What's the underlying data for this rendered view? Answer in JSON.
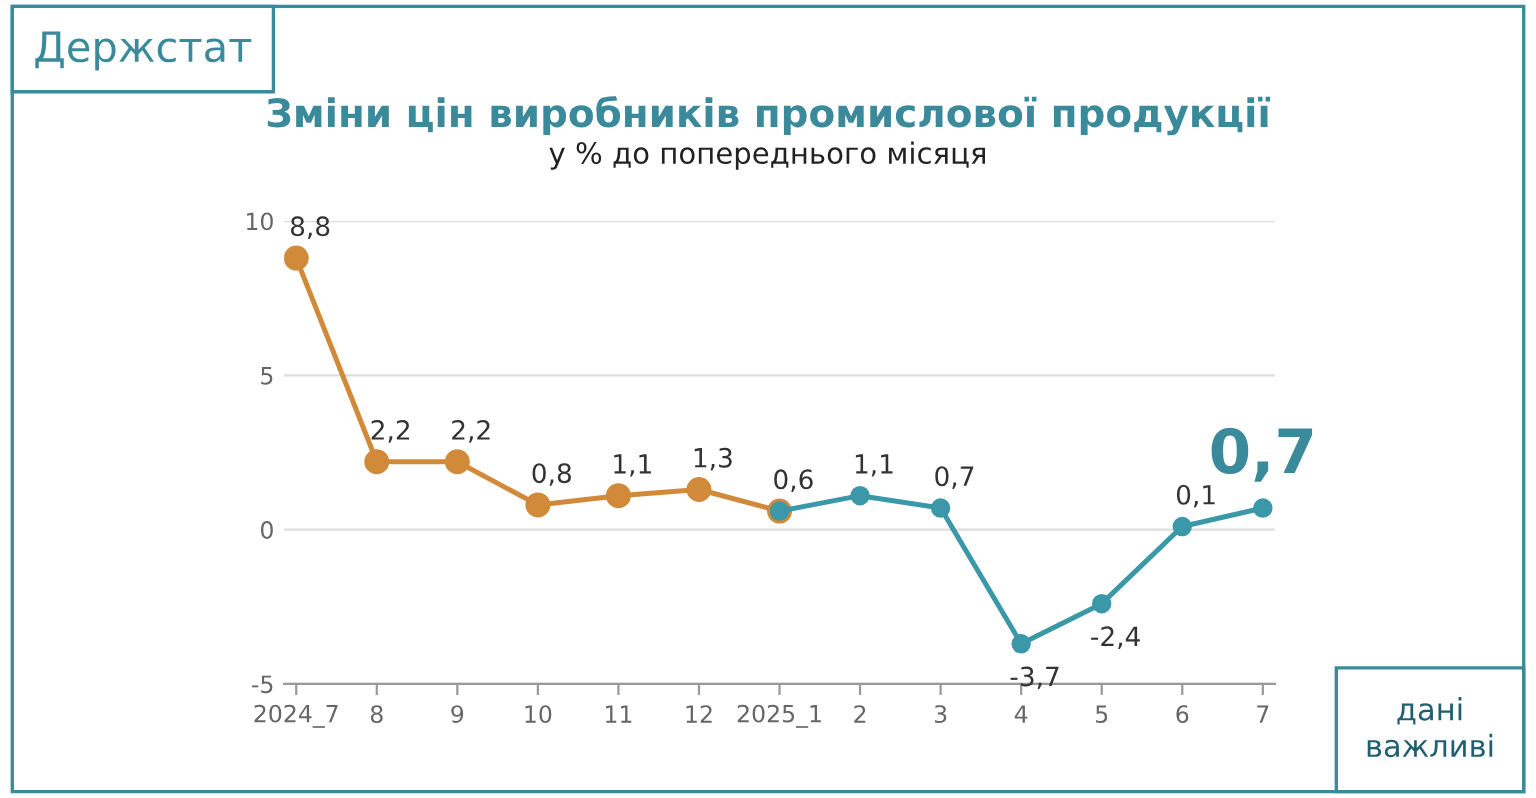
{
  "chart_data": {
    "type": "line",
    "title": "Зміни цін виробників промислової продукції",
    "subtitle": "у % до попереднього місяця",
    "categories": [
      "2024_7",
      "8",
      "9",
      "10",
      "11",
      "12",
      "2025_1",
      "2",
      "3",
      "4",
      "5",
      "6",
      "7"
    ],
    "series": [
      {
        "color": "#d08a3a",
        "values": [
          8.8,
          2.2,
          2.2,
          0.8,
          1.1,
          1.3,
          0.6,
          null,
          null,
          null,
          null,
          null,
          null
        ],
        "value_labels": [
          "8,8",
          "2,2",
          "2,2",
          "0,8",
          "1,1",
          "1,3",
          null,
          null,
          null,
          null,
          null,
          null,
          null
        ]
      },
      {
        "color": "#3a98a8",
        "values": [
          null,
          null,
          null,
          null,
          null,
          null,
          0.6,
          1.1,
          0.7,
          -3.7,
          -2.4,
          0.1,
          0.7
        ],
        "value_labels": [
          null,
          null,
          null,
          null,
          null,
          null,
          "0,6",
          "1,1",
          "0,7",
          "-3,7",
          "-2,4",
          "0,1",
          "0,7"
        ]
      }
    ],
    "ylim": [
      -5,
      10
    ],
    "yticks": [
      -5,
      0,
      5,
      10
    ],
    "grid": "y",
    "marker": "circle",
    "line_style": "solid",
    "annotations": [
      "Держстат",
      "дані важливі"
    ]
  }
}
